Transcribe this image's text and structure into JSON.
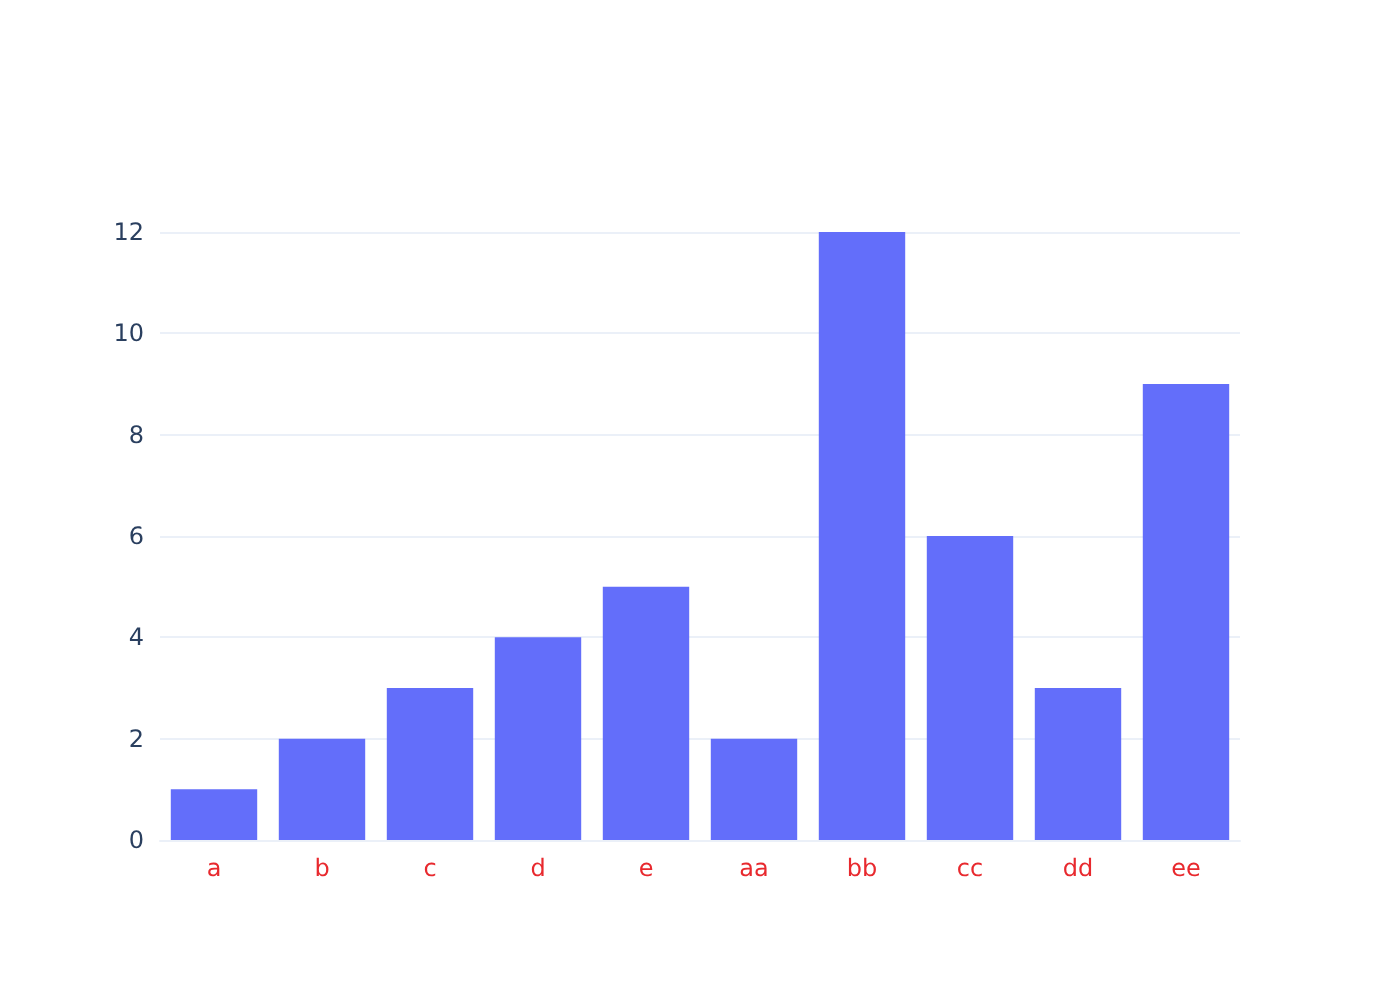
{
  "chart_data": {
    "type": "bar",
    "categories": [
      "a",
      "b",
      "c",
      "d",
      "e",
      "aa",
      "bb",
      "cc",
      "dd",
      "ee"
    ],
    "values": [
      1,
      2,
      3,
      4,
      5,
      2,
      12,
      6,
      3,
      9
    ],
    "color": "#636efa",
    "ylim": [
      0,
      12
    ],
    "yticks": [
      0,
      2,
      4,
      6,
      8,
      10,
      12
    ],
    "grid": "y"
  }
}
